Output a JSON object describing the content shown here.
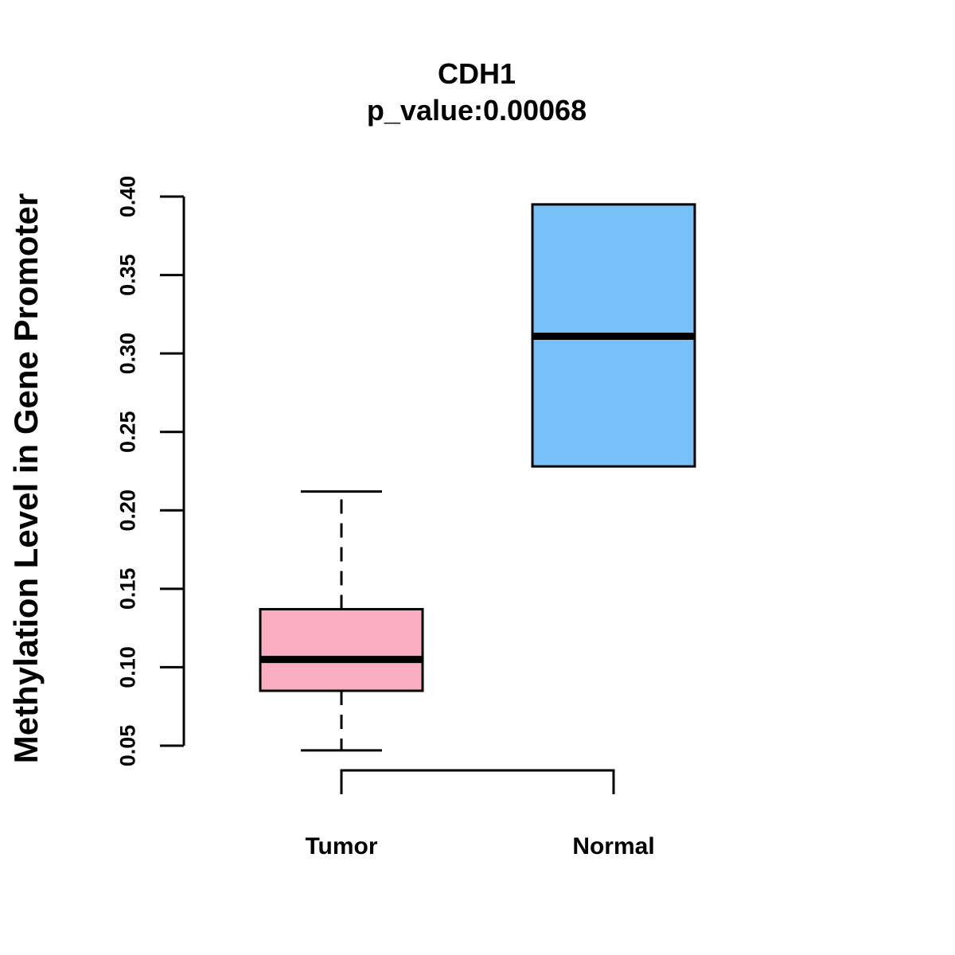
{
  "chart_data": {
    "type": "boxplot",
    "title": "CDH1",
    "subtitle": "p_value:0.00068",
    "xlabel": "",
    "ylabel": "Methylation Level in Gene Promoter",
    "ylim": [
      0.05,
      0.4
    ],
    "yticks": [
      0.05,
      0.1,
      0.15,
      0.2,
      0.25,
      0.3,
      0.35,
      0.4
    ],
    "ytick_labels": [
      "0.05",
      "0.10",
      "0.15",
      "0.20",
      "0.25",
      "0.30",
      "0.35",
      "0.40"
    ],
    "categories": [
      "Tumor",
      "Normal"
    ],
    "series": [
      {
        "name": "Tumor",
        "min": 0.047,
        "q1": 0.085,
        "median": 0.105,
        "q3": 0.137,
        "max": 0.212,
        "color": "#FBAEC1"
      },
      {
        "name": "Normal",
        "min": 0.228,
        "q1": 0.228,
        "median": 0.311,
        "q3": 0.395,
        "max": 0.395,
        "color": "#77C1F8"
      }
    ],
    "grid": false,
    "legend": "none"
  }
}
